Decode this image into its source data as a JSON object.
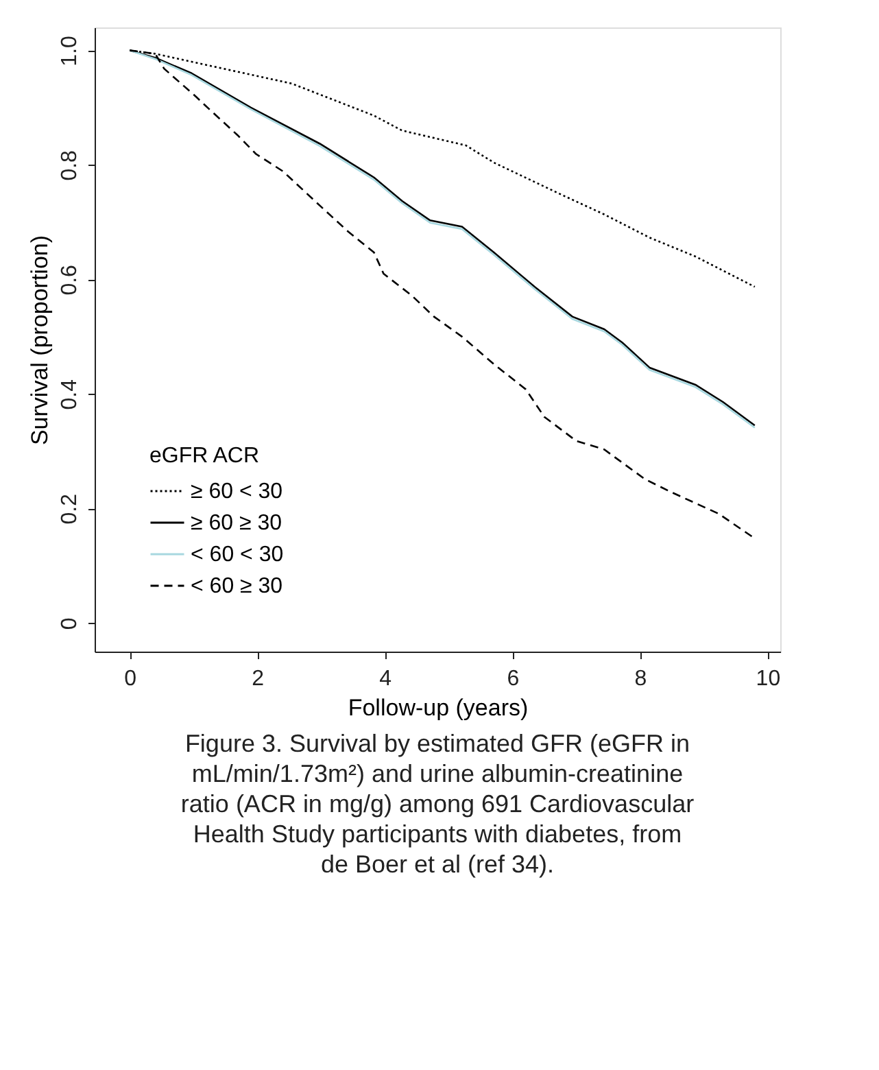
{
  "chart_data": {
    "type": "line",
    "xlabel": "Follow-up (years)",
    "ylabel": "Survival (proportion)",
    "legend_title": "eGFR   ACR",
    "legend": "bottom left",
    "grid": false,
    "marker": "none",
    "xlim": [
      -0.55,
      10.2
    ],
    "xticks": [
      0,
      2,
      4,
      6,
      8,
      10
    ],
    "ylim": [
      -0.05,
      1.04
    ],
    "yticks": [
      0,
      0.2,
      0.4,
      0.6,
      0.8,
      {
        "value": 1,
        "label": "1.0"
      }
    ],
    "series": [
      {
        "name": "≥ 60   < 30",
        "color": "#000000",
        "line_style": "dotted",
        "x": [
          0,
          0.4,
          1.47,
          2.54,
          3.83,
          4.27,
          5.27,
          5.71,
          6.71,
          7.43,
          8.15,
          8.87,
          9.8
        ],
        "values": [
          1,
          0.994,
          0.968,
          0.942,
          0.886,
          0.86,
          0.834,
          0.804,
          0.751,
          0.714,
          0.673,
          0.64,
          0.587
        ]
      },
      {
        "name": "≥ 60   ≥ 30",
        "color": "#000000",
        "line_style": "solid",
        "x": [
          0,
          0.4,
          0.97,
          1.9,
          2.98,
          3.83,
          4.27,
          4.71,
          5.21,
          5.71,
          6.35,
          6.94,
          7.44,
          7.72,
          8.15,
          8.87,
          9.3,
          9.8
        ],
        "values": [
          1,
          0.987,
          0.96,
          0.9,
          0.837,
          0.778,
          0.737,
          0.703,
          0.692,
          0.647,
          0.587,
          0.535,
          0.513,
          0.49,
          0.446,
          0.416,
          0.386,
          0.345
        ]
      },
      {
        "name": "< 60   < 30",
        "color": "#a8d8e0",
        "line_style": "solid",
        "x": [
          0,
          0.4,
          0.97,
          1.9,
          2.98,
          3.83,
          4.27,
          4.71,
          5.21,
          5.71,
          6.35,
          6.94,
          7.44,
          7.72,
          8.15,
          8.87,
          9.3,
          9.8
        ],
        "values": [
          1,
          0.985,
          0.957,
          0.897,
          0.833,
          0.774,
          0.733,
          0.699,
          0.688,
          0.643,
          0.583,
          0.531,
          0.509,
          0.486,
          0.442,
          0.412,
          0.382,
          0.341
        ]
      },
      {
        "name": "< 60   ≥ 30",
        "color": "#000000",
        "line_style": "dashed",
        "x": [
          0,
          0.4,
          0.54,
          1.04,
          1.25,
          1.69,
          1.98,
          2.4,
          2.98,
          3.42,
          3.83,
          3.98,
          4.42,
          4.77,
          5.21,
          5.71,
          6.21,
          6.5,
          7.0,
          7.44,
          8.08,
          8.5,
          9.23,
          9.77
        ],
        "values": [
          1,
          0.994,
          0.968,
          0.919,
          0.897,
          0.852,
          0.819,
          0.789,
          0.729,
          0.684,
          0.647,
          0.61,
          0.572,
          0.535,
          0.5,
          0.452,
          0.408,
          0.36,
          0.318,
          0.303,
          0.251,
          0.228,
          0.191,
          0.15
        ]
      }
    ],
    "annotations": [
      "Figure 3. Survival by estimated GFR (eGFR in mL/min/1.73m²) and urine albumin-creatinine ratio (ACR in mg/g) among 691 Cardiovascular Health Study participants with diabetes, from de Boer et al (ref 34)."
    ]
  }
}
